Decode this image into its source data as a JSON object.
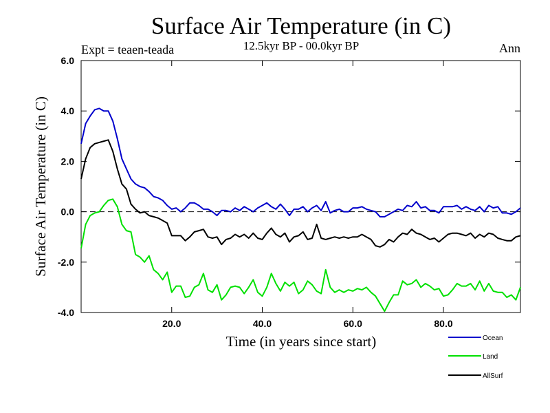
{
  "chart_data": {
    "type": "line",
    "title": "Surface Air Temperature (in C)",
    "subtitle": "12.5kyr BP - 00.0kyr BP",
    "experiment_label": "Expt = teaen-teada",
    "period_label": "Ann",
    "xlabel": "Time (in years since start)",
    "ylabel": "Surface Air Temperature (in C)",
    "xlim": [
      0,
      97
    ],
    "ylim": [
      -4.0,
      6.0
    ],
    "xticks": [
      20,
      40,
      60,
      80
    ],
    "xtick_labels": [
      "20.0",
      "40.0",
      "60.0",
      "80.0"
    ],
    "yticks": [
      -4,
      -2,
      0,
      2,
      4,
      6
    ],
    "ytick_labels": [
      "-4.0",
      "-2.0",
      "0.0",
      "2.0",
      "4.0",
      "6.0"
    ],
    "zero_line": true,
    "legend_position": "bottom-right",
    "x": [
      0,
      1,
      2,
      3,
      4,
      5,
      6,
      7,
      8,
      9,
      10,
      11,
      12,
      13,
      14,
      15,
      16,
      17,
      18,
      19,
      20,
      21,
      22,
      23,
      24,
      25,
      26,
      27,
      28,
      29,
      30,
      31,
      32,
      33,
      34,
      35,
      36,
      37,
      38,
      39,
      40,
      41,
      42,
      43,
      44,
      45,
      46,
      47,
      48,
      49,
      50,
      51,
      52,
      53,
      54,
      55,
      56,
      57,
      58,
      59,
      60,
      61,
      62,
      63,
      64,
      65,
      66,
      67,
      68,
      69,
      70,
      71,
      72,
      73,
      74,
      75,
      76,
      77,
      78,
      79,
      80,
      81,
      82,
      83,
      84,
      85,
      86,
      87,
      88,
      89,
      90,
      91,
      92,
      93,
      94,
      95,
      96,
      97
    ],
    "series": [
      {
        "name": "Ocean",
        "color": "#0000cc",
        "values": [
          2.7,
          3.5,
          3.8,
          4.05,
          4.1,
          4.0,
          4.0,
          3.6,
          2.9,
          2.1,
          1.7,
          1.3,
          1.1,
          1.0,
          0.95,
          0.8,
          0.6,
          0.55,
          0.45,
          0.25,
          0.1,
          0.15,
          0.0,
          0.15,
          0.35,
          0.35,
          0.25,
          0.1,
          0.1,
          0.0,
          -0.15,
          0.05,
          0.05,
          0.0,
          0.15,
          0.05,
          0.2,
          0.1,
          0.0,
          0.15,
          0.25,
          0.35,
          0.2,
          0.1,
          0.3,
          0.1,
          -0.15,
          0.1,
          0.1,
          0.2,
          0.0,
          0.15,
          0.25,
          0.05,
          0.4,
          -0.05,
          0.05,
          0.1,
          0.0,
          0.0,
          0.15,
          0.15,
          0.2,
          0.1,
          0.05,
          0.0,
          -0.2,
          -0.2,
          -0.1,
          0.0,
          0.1,
          0.05,
          0.25,
          0.2,
          0.4,
          0.15,
          0.2,
          0.05,
          0.05,
          -0.05,
          0.2,
          0.2,
          0.2,
          0.25,
          0.1,
          0.2,
          0.1,
          0.05,
          0.2,
          0.0,
          0.25,
          0.15,
          0.2,
          -0.05,
          -0.05,
          -0.1,
          0.0,
          0.15
        ]
      },
      {
        "name": "Land",
        "color": "#00e000",
        "values": [
          -1.45,
          -0.5,
          -0.15,
          -0.05,
          0.0,
          0.25,
          0.45,
          0.5,
          0.2,
          -0.5,
          -0.75,
          -0.8,
          -1.7,
          -1.8,
          -2.0,
          -1.75,
          -2.3,
          -2.45,
          -2.7,
          -2.4,
          -3.2,
          -2.95,
          -2.95,
          -3.4,
          -3.35,
          -3.0,
          -2.9,
          -2.45,
          -3.1,
          -3.2,
          -2.9,
          -3.5,
          -3.3,
          -3.0,
          -2.95,
          -3.0,
          -3.25,
          -3.0,
          -2.7,
          -3.2,
          -3.35,
          -3.0,
          -2.45,
          -2.85,
          -3.15,
          -2.8,
          -2.95,
          -2.8,
          -3.25,
          -3.1,
          -2.75,
          -2.9,
          -3.15,
          -3.25,
          -2.3,
          -3.0,
          -3.2,
          -3.1,
          -3.2,
          -3.1,
          -3.15,
          -3.05,
          -3.1,
          -3.0,
          -3.2,
          -3.35,
          -3.65,
          -3.95,
          -3.6,
          -3.3,
          -3.3,
          -2.75,
          -2.9,
          -2.85,
          -2.7,
          -3.0,
          -2.85,
          -2.95,
          -3.1,
          -3.05,
          -3.35,
          -3.3,
          -3.1,
          -2.85,
          -2.95,
          -2.95,
          -2.85,
          -3.1,
          -2.75,
          -3.15,
          -2.85,
          -3.15,
          -3.2,
          -3.2,
          -3.4,
          -3.3,
          -3.5,
          -3.0
        ]
      },
      {
        "name": "AllSurf",
        "color": "#000000",
        "values": [
          1.3,
          2.1,
          2.55,
          2.7,
          2.75,
          2.8,
          2.85,
          2.4,
          1.7,
          1.1,
          0.9,
          0.3,
          0.1,
          -0.05,
          0.0,
          -0.15,
          -0.2,
          -0.25,
          -0.35,
          -0.45,
          -0.95,
          -0.95,
          -0.95,
          -1.15,
          -1.0,
          -0.8,
          -0.75,
          -0.7,
          -1.0,
          -1.05,
          -1.0,
          -1.3,
          -1.1,
          -1.05,
          -0.9,
          -1.0,
          -0.9,
          -1.05,
          -0.85,
          -1.05,
          -1.1,
          -0.85,
          -0.65,
          -0.9,
          -1.0,
          -0.85,
          -1.2,
          -1.0,
          -0.95,
          -0.8,
          -1.1,
          -1.05,
          -0.5,
          -1.05,
          -1.1,
          -1.05,
          -1.0,
          -1.05,
          -1.0,
          -1.05,
          -1.0,
          -1.0,
          -0.9,
          -1.0,
          -1.1,
          -1.35,
          -1.4,
          -1.3,
          -1.1,
          -1.2,
          -1.0,
          -0.85,
          -0.9,
          -0.7,
          -0.85,
          -0.9,
          -1.0,
          -1.1,
          -1.05,
          -1.2,
          -1.05,
          -0.9,
          -0.85,
          -0.85,
          -0.9,
          -0.95,
          -0.85,
          -1.05,
          -0.9,
          -1.0,
          -0.85,
          -0.9,
          -1.05,
          -1.1,
          -1.15,
          -1.15,
          -1.0,
          -0.95
        ]
      }
    ]
  }
}
